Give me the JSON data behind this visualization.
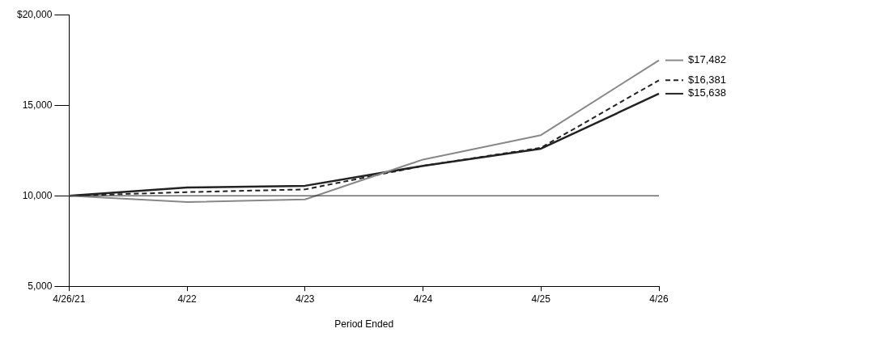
{
  "chart_data": {
    "type": "line",
    "xlabel": "Period Ended",
    "categories": [
      "4/26/21",
      "4/22",
      "4/23",
      "4/24",
      "4/25",
      "4/26"
    ],
    "ylim": [
      5000,
      20000
    ],
    "yticks": [
      {
        "value": 5000,
        "label": "5,000"
      },
      {
        "value": 10000,
        "label": "10,000"
      },
      {
        "value": 15000,
        "label": "15,000"
      },
      {
        "value": 20000,
        "label": "$20,000"
      }
    ],
    "grid": false,
    "legend": false,
    "marker": "none",
    "ref_lines": [
      {
        "axis": "y",
        "value": 10000,
        "color": "#222222"
      }
    ],
    "series": [
      {
        "color": "#888888",
        "line_style": "solid",
        "values": [
          10000,
          9650,
          9800,
          12000,
          13350,
          17482
        ],
        "value_labels": [
          null,
          null,
          null,
          null,
          null,
          "$17,482"
        ]
      },
      {
        "color": "#222222",
        "line_style": "dashed",
        "values": [
          10000,
          10200,
          10350,
          11650,
          12650,
          16381
        ],
        "value_labels": [
          null,
          null,
          null,
          null,
          null,
          "$16,381"
        ]
      },
      {
        "color": "#222222",
        "line_style": "solid",
        "values": [
          10000,
          10450,
          10550,
          11650,
          12600,
          15638
        ],
        "value_labels": [
          null,
          null,
          null,
          null,
          null,
          "$15,638"
        ]
      }
    ]
  }
}
